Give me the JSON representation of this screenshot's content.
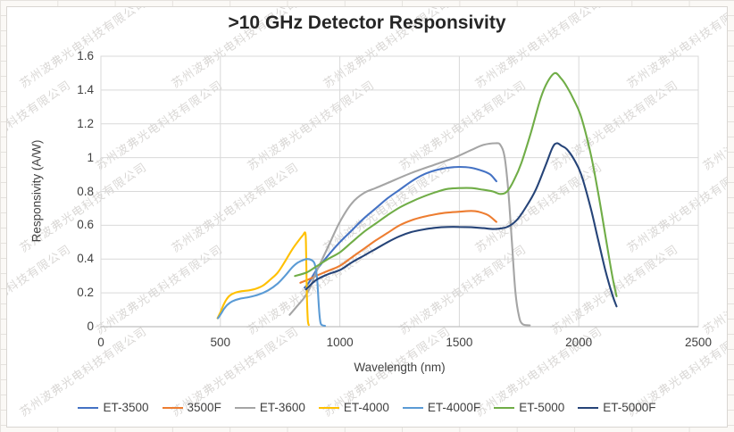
{
  "watermark": {
    "text": "苏州波弗光电科技有限公司"
  },
  "colors": {
    "page_bg": "#FBF9F6",
    "page_grid": "#E5E2DE",
    "chart_border": "#D9D6D2",
    "gridline": "#D9D9D9",
    "axis_line": "#BFBFBF",
    "tick_text": "#404040",
    "title_text": "#262626"
  },
  "chart_data": {
    "type": "line",
    "title": ">10 GHz Detector Responsivity",
    "xlabel": "Wavelength (nm)",
    "ylabel": "Responsivity (A/W)",
    "xlim": [
      0,
      2500
    ],
    "ylim": [
      0,
      1.6
    ],
    "grid": true,
    "legend_position": "bottom",
    "x_ticks": [
      0,
      500,
      1000,
      1500,
      2000,
      2500
    ],
    "y_ticks": [
      0,
      0.2,
      0.4,
      0.6,
      0.8,
      1,
      1.2,
      1.4,
      1.6
    ],
    "x_tick_labels": [
      "0",
      "500",
      "1000",
      "1500",
      "2000",
      "2500"
    ],
    "y_tick_labels": [
      "0",
      "0.2",
      "0.4",
      "0.6",
      "0.8",
      "1",
      "1.2",
      "1.4",
      "1.6"
    ],
    "series": [
      {
        "name": "ET-3500",
        "color": "#4472C4",
        "points": [
          [
            852,
            0.23
          ],
          [
            870,
            0.26
          ],
          [
            900,
            0.33
          ],
          [
            950,
            0.42
          ],
          [
            1000,
            0.5
          ],
          [
            1050,
            0.57
          ],
          [
            1100,
            0.64
          ],
          [
            1150,
            0.7
          ],
          [
            1200,
            0.76
          ],
          [
            1250,
            0.81
          ],
          [
            1300,
            0.86
          ],
          [
            1350,
            0.9
          ],
          [
            1400,
            0.925
          ],
          [
            1450,
            0.94
          ],
          [
            1500,
            0.945
          ],
          [
            1550,
            0.94
          ],
          [
            1600,
            0.92
          ],
          [
            1630,
            0.9
          ],
          [
            1655,
            0.86
          ]
        ]
      },
      {
        "name": "3500F",
        "color": "#ED7D31",
        "points": [
          [
            835,
            0.26
          ],
          [
            870,
            0.28
          ],
          [
            900,
            0.3
          ],
          [
            950,
            0.33
          ],
          [
            1000,
            0.36
          ],
          [
            1050,
            0.41
          ],
          [
            1100,
            0.46
          ],
          [
            1150,
            0.51
          ],
          [
            1200,
            0.555
          ],
          [
            1250,
            0.6
          ],
          [
            1300,
            0.63
          ],
          [
            1350,
            0.65
          ],
          [
            1400,
            0.665
          ],
          [
            1450,
            0.675
          ],
          [
            1500,
            0.68
          ],
          [
            1550,
            0.685
          ],
          [
            1580,
            0.68
          ],
          [
            1620,
            0.66
          ],
          [
            1655,
            0.62
          ]
        ]
      },
      {
        "name": "ET-3600",
        "color": "#A5A5A5",
        "points": [
          [
            790,
            0.07
          ],
          [
            820,
            0.12
          ],
          [
            850,
            0.17
          ],
          [
            875,
            0.23
          ],
          [
            900,
            0.32
          ],
          [
            950,
            0.47
          ],
          [
            1000,
            0.62
          ],
          [
            1050,
            0.73
          ],
          [
            1100,
            0.79
          ],
          [
            1150,
            0.82
          ],
          [
            1200,
            0.85
          ],
          [
            1300,
            0.91
          ],
          [
            1400,
            0.96
          ],
          [
            1480,
            1.0
          ],
          [
            1550,
            1.045
          ],
          [
            1600,
            1.075
          ],
          [
            1650,
            1.085
          ],
          [
            1672,
            1.075
          ],
          [
            1690,
            1.0
          ],
          [
            1705,
            0.8
          ],
          [
            1720,
            0.5
          ],
          [
            1735,
            0.2
          ],
          [
            1750,
            0.06
          ],
          [
            1765,
            0.015
          ],
          [
            1795,
            0.008
          ]
        ]
      },
      {
        "name": "ET-4000",
        "color": "#FFC000",
        "points": [
          [
            488,
            0.05
          ],
          [
            500,
            0.085
          ],
          [
            512,
            0.125
          ],
          [
            525,
            0.16
          ],
          [
            540,
            0.185
          ],
          [
            560,
            0.2
          ],
          [
            590,
            0.21
          ],
          [
            620,
            0.215
          ],
          [
            650,
            0.225
          ],
          [
            680,
            0.245
          ],
          [
            710,
            0.28
          ],
          [
            740,
            0.32
          ],
          [
            770,
            0.385
          ],
          [
            800,
            0.455
          ],
          [
            825,
            0.505
          ],
          [
            845,
            0.54
          ],
          [
            856,
            0.55
          ],
          [
            859,
            0.42
          ],
          [
            862,
            0.18
          ],
          [
            866,
            0.04
          ],
          [
            870,
            0.01
          ]
        ]
      },
      {
        "name": "ET-4000F",
        "color": "#5B9BD5",
        "points": [
          [
            490,
            0.05
          ],
          [
            502,
            0.075
          ],
          [
            515,
            0.105
          ],
          [
            530,
            0.13
          ],
          [
            550,
            0.15
          ],
          [
            580,
            0.165
          ],
          [
            620,
            0.175
          ],
          [
            660,
            0.19
          ],
          [
            700,
            0.215
          ],
          [
            740,
            0.255
          ],
          [
            770,
            0.3
          ],
          [
            800,
            0.35
          ],
          [
            820,
            0.375
          ],
          [
            840,
            0.39
          ],
          [
            860,
            0.4
          ],
          [
            880,
            0.395
          ],
          [
            895,
            0.37
          ],
          [
            905,
            0.28
          ],
          [
            912,
            0.12
          ],
          [
            918,
            0.03
          ],
          [
            925,
            0.01
          ],
          [
            938,
            0.005
          ]
        ]
      },
      {
        "name": "ET-5000",
        "color": "#70AD47",
        "points": [
          [
            812,
            0.3
          ],
          [
            860,
            0.32
          ],
          [
            900,
            0.355
          ],
          [
            950,
            0.4
          ],
          [
            1000,
            0.44
          ],
          [
            1050,
            0.5
          ],
          [
            1100,
            0.56
          ],
          [
            1150,
            0.61
          ],
          [
            1200,
            0.66
          ],
          [
            1250,
            0.705
          ],
          [
            1300,
            0.74
          ],
          [
            1350,
            0.77
          ],
          [
            1400,
            0.795
          ],
          [
            1450,
            0.815
          ],
          [
            1500,
            0.82
          ],
          [
            1550,
            0.82
          ],
          [
            1600,
            0.81
          ],
          [
            1640,
            0.8
          ],
          [
            1672,
            0.785
          ],
          [
            1700,
            0.8
          ],
          [
            1730,
            0.87
          ],
          [
            1760,
            0.97
          ],
          [
            1800,
            1.15
          ],
          [
            1840,
            1.35
          ],
          [
            1870,
            1.45
          ],
          [
            1900,
            1.5
          ],
          [
            1925,
            1.47
          ],
          [
            1950,
            1.42
          ],
          [
            1980,
            1.34
          ],
          [
            2010,
            1.24
          ],
          [
            2050,
            1.02
          ],
          [
            2080,
            0.8
          ],
          [
            2110,
            0.55
          ],
          [
            2140,
            0.3
          ],
          [
            2158,
            0.18
          ]
        ]
      },
      {
        "name": "ET-5000F",
        "color": "#264478",
        "points": [
          [
            858,
            0.22
          ],
          [
            900,
            0.275
          ],
          [
            950,
            0.31
          ],
          [
            1000,
            0.335
          ],
          [
            1050,
            0.38
          ],
          [
            1100,
            0.42
          ],
          [
            1150,
            0.46
          ],
          [
            1200,
            0.5
          ],
          [
            1250,
            0.535
          ],
          [
            1300,
            0.56
          ],
          [
            1350,
            0.575
          ],
          [
            1400,
            0.585
          ],
          [
            1450,
            0.59
          ],
          [
            1500,
            0.59
          ],
          [
            1550,
            0.588
          ],
          [
            1600,
            0.583
          ],
          [
            1650,
            0.578
          ],
          [
            1700,
            0.59
          ],
          [
            1740,
            0.63
          ],
          [
            1780,
            0.71
          ],
          [
            1820,
            0.81
          ],
          [
            1860,
            0.95
          ],
          [
            1890,
            1.06
          ],
          [
            1908,
            1.085
          ],
          [
            1928,
            1.07
          ],
          [
            1950,
            1.05
          ],
          [
            1980,
            0.99
          ],
          [
            2010,
            0.9
          ],
          [
            2050,
            0.7
          ],
          [
            2080,
            0.52
          ],
          [
            2110,
            0.34
          ],
          [
            2140,
            0.19
          ],
          [
            2158,
            0.12
          ]
        ]
      }
    ]
  }
}
